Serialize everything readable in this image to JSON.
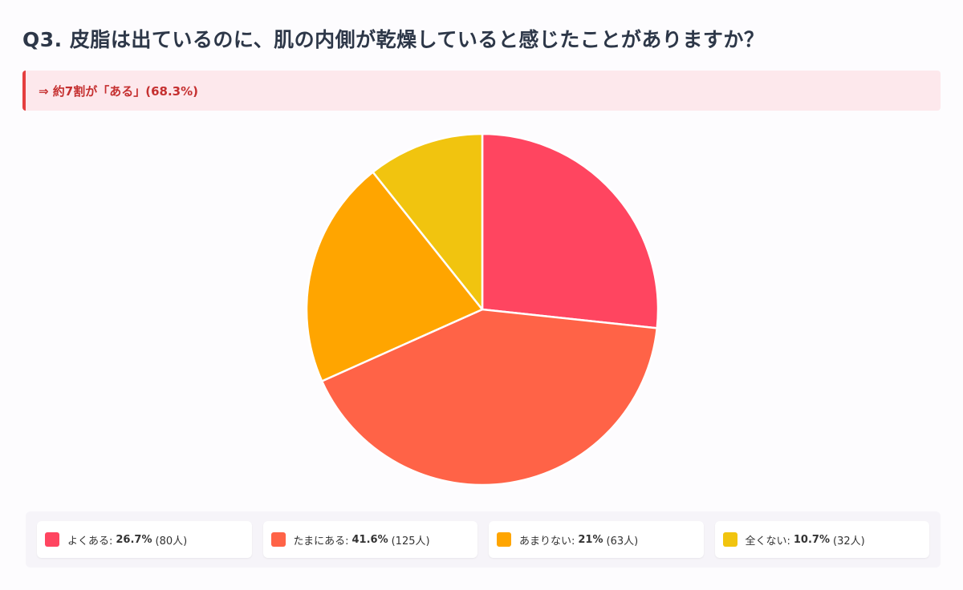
{
  "title": "Q3. 皮脂は出ているのに、肌の内側が乾燥していると感じたことがありますか？",
  "highlight": "⇒ 約7割が「ある」(68.3%)",
  "chart_data": {
    "type": "pie",
    "categories": [
      "よくある",
      "たまにある",
      "あまりない",
      "全くない"
    ],
    "values": [
      26.7,
      41.6,
      21,
      10.7
    ],
    "percent_labels": [
      "26.7%",
      "41.6%",
      "21%",
      "10.7%"
    ],
    "counts": [
      "(80人)",
      "(125人)",
      "(63人)",
      "(32人)"
    ],
    "colors": [
      "#ff4560",
      "#ff6347",
      "#ffa500",
      "#f1c40f"
    ],
    "title": "",
    "legend_position": "bottom"
  },
  "legend": [
    {
      "label": "よくある:",
      "pct": "26.7%",
      "count": "(80人)"
    },
    {
      "label": "たまにある:",
      "pct": "41.6%",
      "count": "(125人)"
    },
    {
      "label": "あまりない:",
      "pct": "21%",
      "count": "(63人)"
    },
    {
      "label": "全くない:",
      "pct": "10.7%",
      "count": "(32人)"
    }
  ]
}
